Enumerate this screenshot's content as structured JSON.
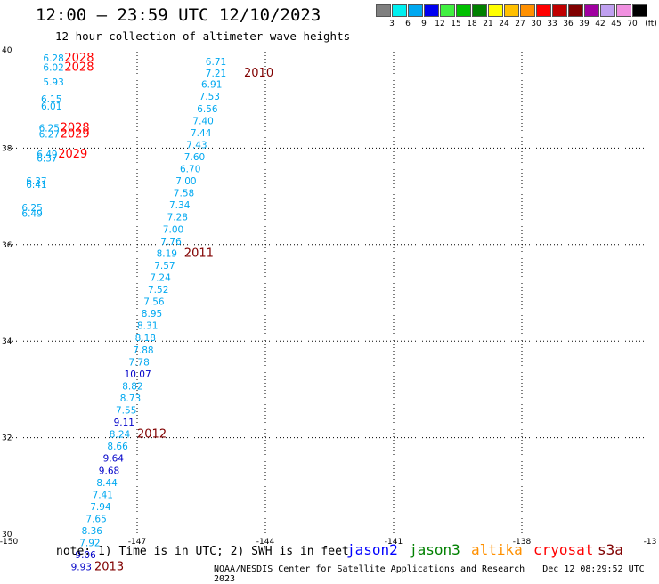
{
  "title": "12:00 — 23:59 UTC 12/10/2023",
  "subtitle": "12 hour collection of altimeter wave heights",
  "colorbar": {
    "labels": [
      "3",
      "6",
      "9",
      "12",
      "15",
      "18",
      "21",
      "24",
      "27",
      "30",
      "33",
      "36",
      "39",
      "42",
      "45",
      "70"
    ],
    "unit": "(ft)",
    "colors": [
      "#808080",
      "#00f0f0",
      "#00a8f0",
      "#0000f0",
      "#40f040",
      "#00c000",
      "#008000",
      "#ffff00",
      "#ffc000",
      "#ff9000",
      "#ff0000",
      "#c00000",
      "#800000",
      "#a000a0",
      "#c0a0f0",
      "#f090e0",
      "#000000"
    ]
  },
  "axes": {
    "lon_ticks": [
      "-150",
      "-147",
      "-144",
      "-141",
      "-138",
      "-13"
    ],
    "lat_ticks": [
      "40",
      "38",
      "36",
      "34",
      "32",
      "30"
    ]
  },
  "chart_data": {
    "type": "scatter",
    "xlim": [
      -150,
      -135
    ],
    "ylim": [
      30,
      40
    ],
    "points": [
      {
        "lon": -149.2,
        "lat": 39.8,
        "text": "6.28",
        "color": "#00a8f0"
      },
      {
        "lon": -149.2,
        "lat": 39.6,
        "text": "6.02",
        "color": "#00a8f0"
      },
      {
        "lon": -149.2,
        "lat": 39.3,
        "text": "5.93",
        "color": "#00a8f0"
      },
      {
        "lon": -149.25,
        "lat": 38.95,
        "text": "6.15",
        "color": "#00a8f0"
      },
      {
        "lon": -149.25,
        "lat": 38.8,
        "text": "6.01",
        "color": "#00a8f0"
      },
      {
        "lon": -149.3,
        "lat": 38.35,
        "text": "6.25",
        "color": "#00a8f0"
      },
      {
        "lon": -149.3,
        "lat": 38.22,
        "text": "6.27",
        "color": "#00a8f0"
      },
      {
        "lon": -149.35,
        "lat": 37.8,
        "text": "6.49",
        "color": "#00a8f0"
      },
      {
        "lon": -149.35,
        "lat": 37.72,
        "text": "6.37",
        "color": "#00a8f0"
      },
      {
        "lon": -149.6,
        "lat": 37.25,
        "text": "6.37",
        "color": "#00a8f0"
      },
      {
        "lon": -149.6,
        "lat": 37.18,
        "text": "6.41",
        "color": "#00a8f0"
      },
      {
        "lon": -149.7,
        "lat": 36.7,
        "text": "6.25",
        "color": "#00a8f0"
      },
      {
        "lon": -149.7,
        "lat": 36.58,
        "text": "6.49",
        "color": "#00a8f0"
      },
      {
        "lon": -145.4,
        "lat": 39.72,
        "text": "6.71",
        "color": "#00a8f0"
      },
      {
        "lon": -145.4,
        "lat": 39.48,
        "text": "7.21",
        "color": "#00a8f0"
      },
      {
        "lon": -145.5,
        "lat": 39.25,
        "text": "6.91",
        "color": "#00a8f0"
      },
      {
        "lon": -145.55,
        "lat": 39.0,
        "text": "7.53",
        "color": "#00a8f0"
      },
      {
        "lon": -145.6,
        "lat": 38.75,
        "text": "6.56",
        "color": "#00a8f0"
      },
      {
        "lon": -145.7,
        "lat": 38.5,
        "text": "7.40",
        "color": "#00a8f0"
      },
      {
        "lon": -145.75,
        "lat": 38.25,
        "text": "7.44",
        "color": "#00a8f0"
      },
      {
        "lon": -145.85,
        "lat": 38.0,
        "text": "7.43",
        "color": "#00a8f0"
      },
      {
        "lon": -145.9,
        "lat": 37.75,
        "text": "7.60",
        "color": "#00a8f0"
      },
      {
        "lon": -146.0,
        "lat": 37.5,
        "text": "6.70",
        "color": "#00a8f0"
      },
      {
        "lon": -146.1,
        "lat": 37.25,
        "text": "7.00",
        "color": "#00a8f0"
      },
      {
        "lon": -146.15,
        "lat": 37.0,
        "text": "7.58",
        "color": "#00a8f0"
      },
      {
        "lon": -146.25,
        "lat": 36.75,
        "text": "7.34",
        "color": "#00a8f0"
      },
      {
        "lon": -146.3,
        "lat": 36.5,
        "text": "7.28",
        "color": "#00a8f0"
      },
      {
        "lon": -146.4,
        "lat": 36.25,
        "text": "7.00",
        "color": "#00a8f0"
      },
      {
        "lon": -146.45,
        "lat": 36.0,
        "text": "7.76",
        "color": "#00a8f0"
      },
      {
        "lon": -146.55,
        "lat": 35.75,
        "text": "8.19",
        "color": "#00a8f0"
      },
      {
        "lon": -146.6,
        "lat": 35.5,
        "text": "7.57",
        "color": "#00a8f0"
      },
      {
        "lon": -146.7,
        "lat": 35.25,
        "text": "7.24",
        "color": "#00a8f0"
      },
      {
        "lon": -146.75,
        "lat": 35.0,
        "text": "7.52",
        "color": "#00a8f0"
      },
      {
        "lon": -146.85,
        "lat": 34.75,
        "text": "7.56",
        "color": "#00a8f0"
      },
      {
        "lon": -146.9,
        "lat": 34.5,
        "text": "8.95",
        "color": "#00a8f0"
      },
      {
        "lon": -147.0,
        "lat": 34.25,
        "text": "8.31",
        "color": "#00a8f0"
      },
      {
        "lon": -147.05,
        "lat": 34.0,
        "text": "8.18",
        "color": "#00a8f0"
      },
      {
        "lon": -147.1,
        "lat": 33.75,
        "text": "7.88",
        "color": "#00a8f0"
      },
      {
        "lon": -147.2,
        "lat": 33.5,
        "text": "7.78",
        "color": "#00a8f0"
      },
      {
        "lon": -147.3,
        "lat": 33.25,
        "text": "10.07",
        "color": "#0000c8"
      },
      {
        "lon": -147.35,
        "lat": 33.0,
        "text": "8.82",
        "color": "#00a8f0"
      },
      {
        "lon": -147.4,
        "lat": 32.75,
        "text": "8.73",
        "color": "#00a8f0"
      },
      {
        "lon": -147.5,
        "lat": 32.5,
        "text": "7.55",
        "color": "#00a8f0"
      },
      {
        "lon": -147.55,
        "lat": 32.25,
        "text": "9.11",
        "color": "#0000c8"
      },
      {
        "lon": -147.65,
        "lat": 32.0,
        "text": "8.24",
        "color": "#00a8f0"
      },
      {
        "lon": -147.7,
        "lat": 31.75,
        "text": "8.66",
        "color": "#00a8f0"
      },
      {
        "lon": -147.8,
        "lat": 31.5,
        "text": "9.64",
        "color": "#0000c8"
      },
      {
        "lon": -147.9,
        "lat": 31.25,
        "text": "9.68",
        "color": "#0000c8"
      },
      {
        "lon": -147.95,
        "lat": 31.0,
        "text": "8.44",
        "color": "#00a8f0"
      },
      {
        "lon": -148.05,
        "lat": 30.75,
        "text": "7.41",
        "color": "#00a8f0"
      },
      {
        "lon": -148.1,
        "lat": 30.5,
        "text": "7.94",
        "color": "#00a8f0"
      },
      {
        "lon": -148.2,
        "lat": 30.25,
        "text": "7.65",
        "color": "#00a8f0"
      },
      {
        "lon": -148.3,
        "lat": 30.0,
        "text": "8.36",
        "color": "#00a8f0"
      },
      {
        "lon": -148.35,
        "lat": 29.75,
        "text": "7.92",
        "color": "#00a8f0"
      },
      {
        "lon": -148.45,
        "lat": 29.5,
        "text": "9.06",
        "color": "#0000c8"
      },
      {
        "lon": -148.55,
        "lat": 29.25,
        "text": "9.93",
        "color": "#0000c8"
      }
    ],
    "time_labels": [
      {
        "lon": -148.7,
        "lat": 39.8,
        "text": "2028",
        "color": "#ff0000"
      },
      {
        "lon": -148.7,
        "lat": 39.6,
        "text": "2028",
        "color": "#ff0000"
      },
      {
        "lon": -148.8,
        "lat": 38.35,
        "text": "2028",
        "color": "#ff0000"
      },
      {
        "lon": -148.8,
        "lat": 38.22,
        "text": "2029",
        "color": "#ff0000"
      },
      {
        "lon": -148.85,
        "lat": 37.8,
        "text": "2029",
        "color": "#ff0000"
      },
      {
        "lon": -144.5,
        "lat": 39.48,
        "text": "2010",
        "color": "#800000"
      },
      {
        "lon": -145.9,
        "lat": 35.75,
        "text": "2011",
        "color": "#800000"
      },
      {
        "lon": -147.0,
        "lat": 32.0,
        "text": "2012",
        "color": "#800000"
      },
      {
        "lon": -148.0,
        "lat": 29.25,
        "text": "2013",
        "color": "#800000"
      }
    ]
  },
  "note": "note: 1) Time is in UTC; 2) SWH is in feet",
  "legend": [
    {
      "text": "jason2",
      "color": "#0000ff"
    },
    {
      "text": "jason3",
      "color": "#008000"
    },
    {
      "text": "altika",
      "color": "#ff9000"
    },
    {
      "text": "cryosat",
      "color": "#ff0000"
    },
    {
      "text": "s3a",
      "color": "#800000"
    }
  ],
  "credit": "NOAA/NESDIS Center for Satellite Applications and Research",
  "timestamp": "Dec 12 08:29:52 UTC 2023"
}
